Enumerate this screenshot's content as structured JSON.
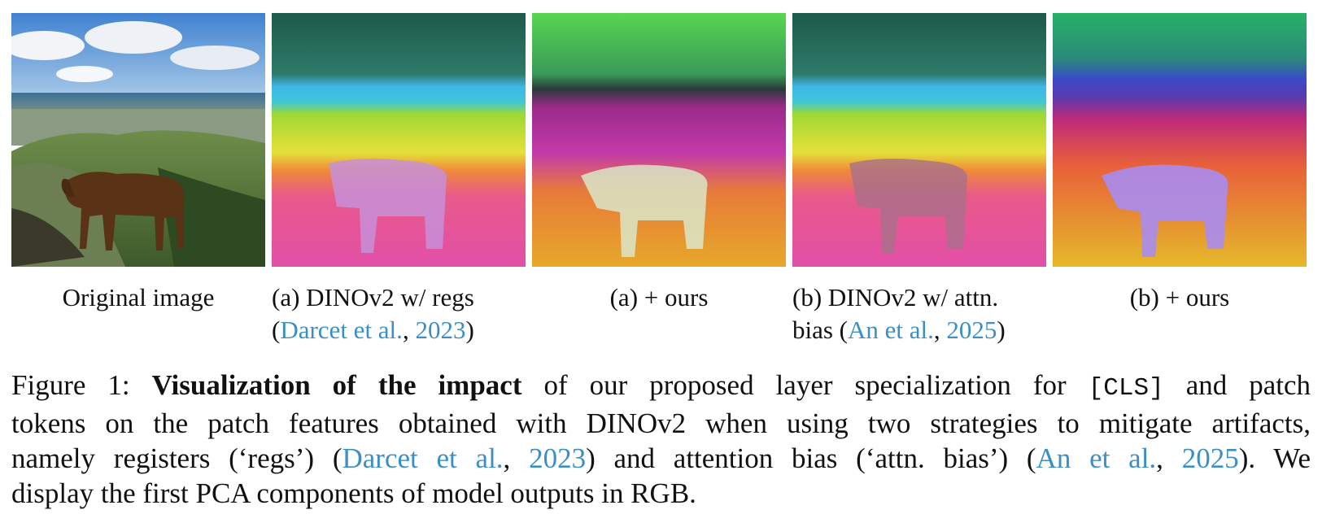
{
  "panels": [
    {
      "caption": "Original image"
    },
    {
      "caption_prefix": "(a) DINOv2 w/ regs",
      "caption_open": "(",
      "caption_cite_author": "Darcet et al.",
      "caption_sep": ", ",
      "caption_cite_year": "2023",
      "caption_close": ")"
    },
    {
      "caption": "(a) + ours"
    },
    {
      "caption_prefix": "(b) DINOv2 w/ attn.",
      "caption_line2": "bias (",
      "caption_cite_author": "An et al.",
      "caption_sep": ", ",
      "caption_cite_year": "2025",
      "caption_close": ")"
    },
    {
      "caption": "(b) + ours"
    }
  ],
  "figure_caption": {
    "label": "Figure 1:",
    "bold": "Visualization of the impact",
    "t1": "of our proposed layer specialization for",
    "cls": "[CLS]",
    "t2": "and patch",
    "line2": "tokens on the patch features obtained with DINOv2 when using two strategies to mitigate artifacts,",
    "l3a": "namely registers (‘regs’) (",
    "l3_cite1": "Darcet et al.",
    "l3_sep1": ", ",
    "l3_year1": "2023",
    "l3b": ") and attention bias (‘attn. bias’) (",
    "l3_cite2": "An et al.",
    "l3_sep2": ", ",
    "l3_year2": "2025",
    "l3c": "). We",
    "line4": "display the first PCA components of model outputs in RGB."
  },
  "colors": {
    "citation": "#3b8fc4"
  }
}
